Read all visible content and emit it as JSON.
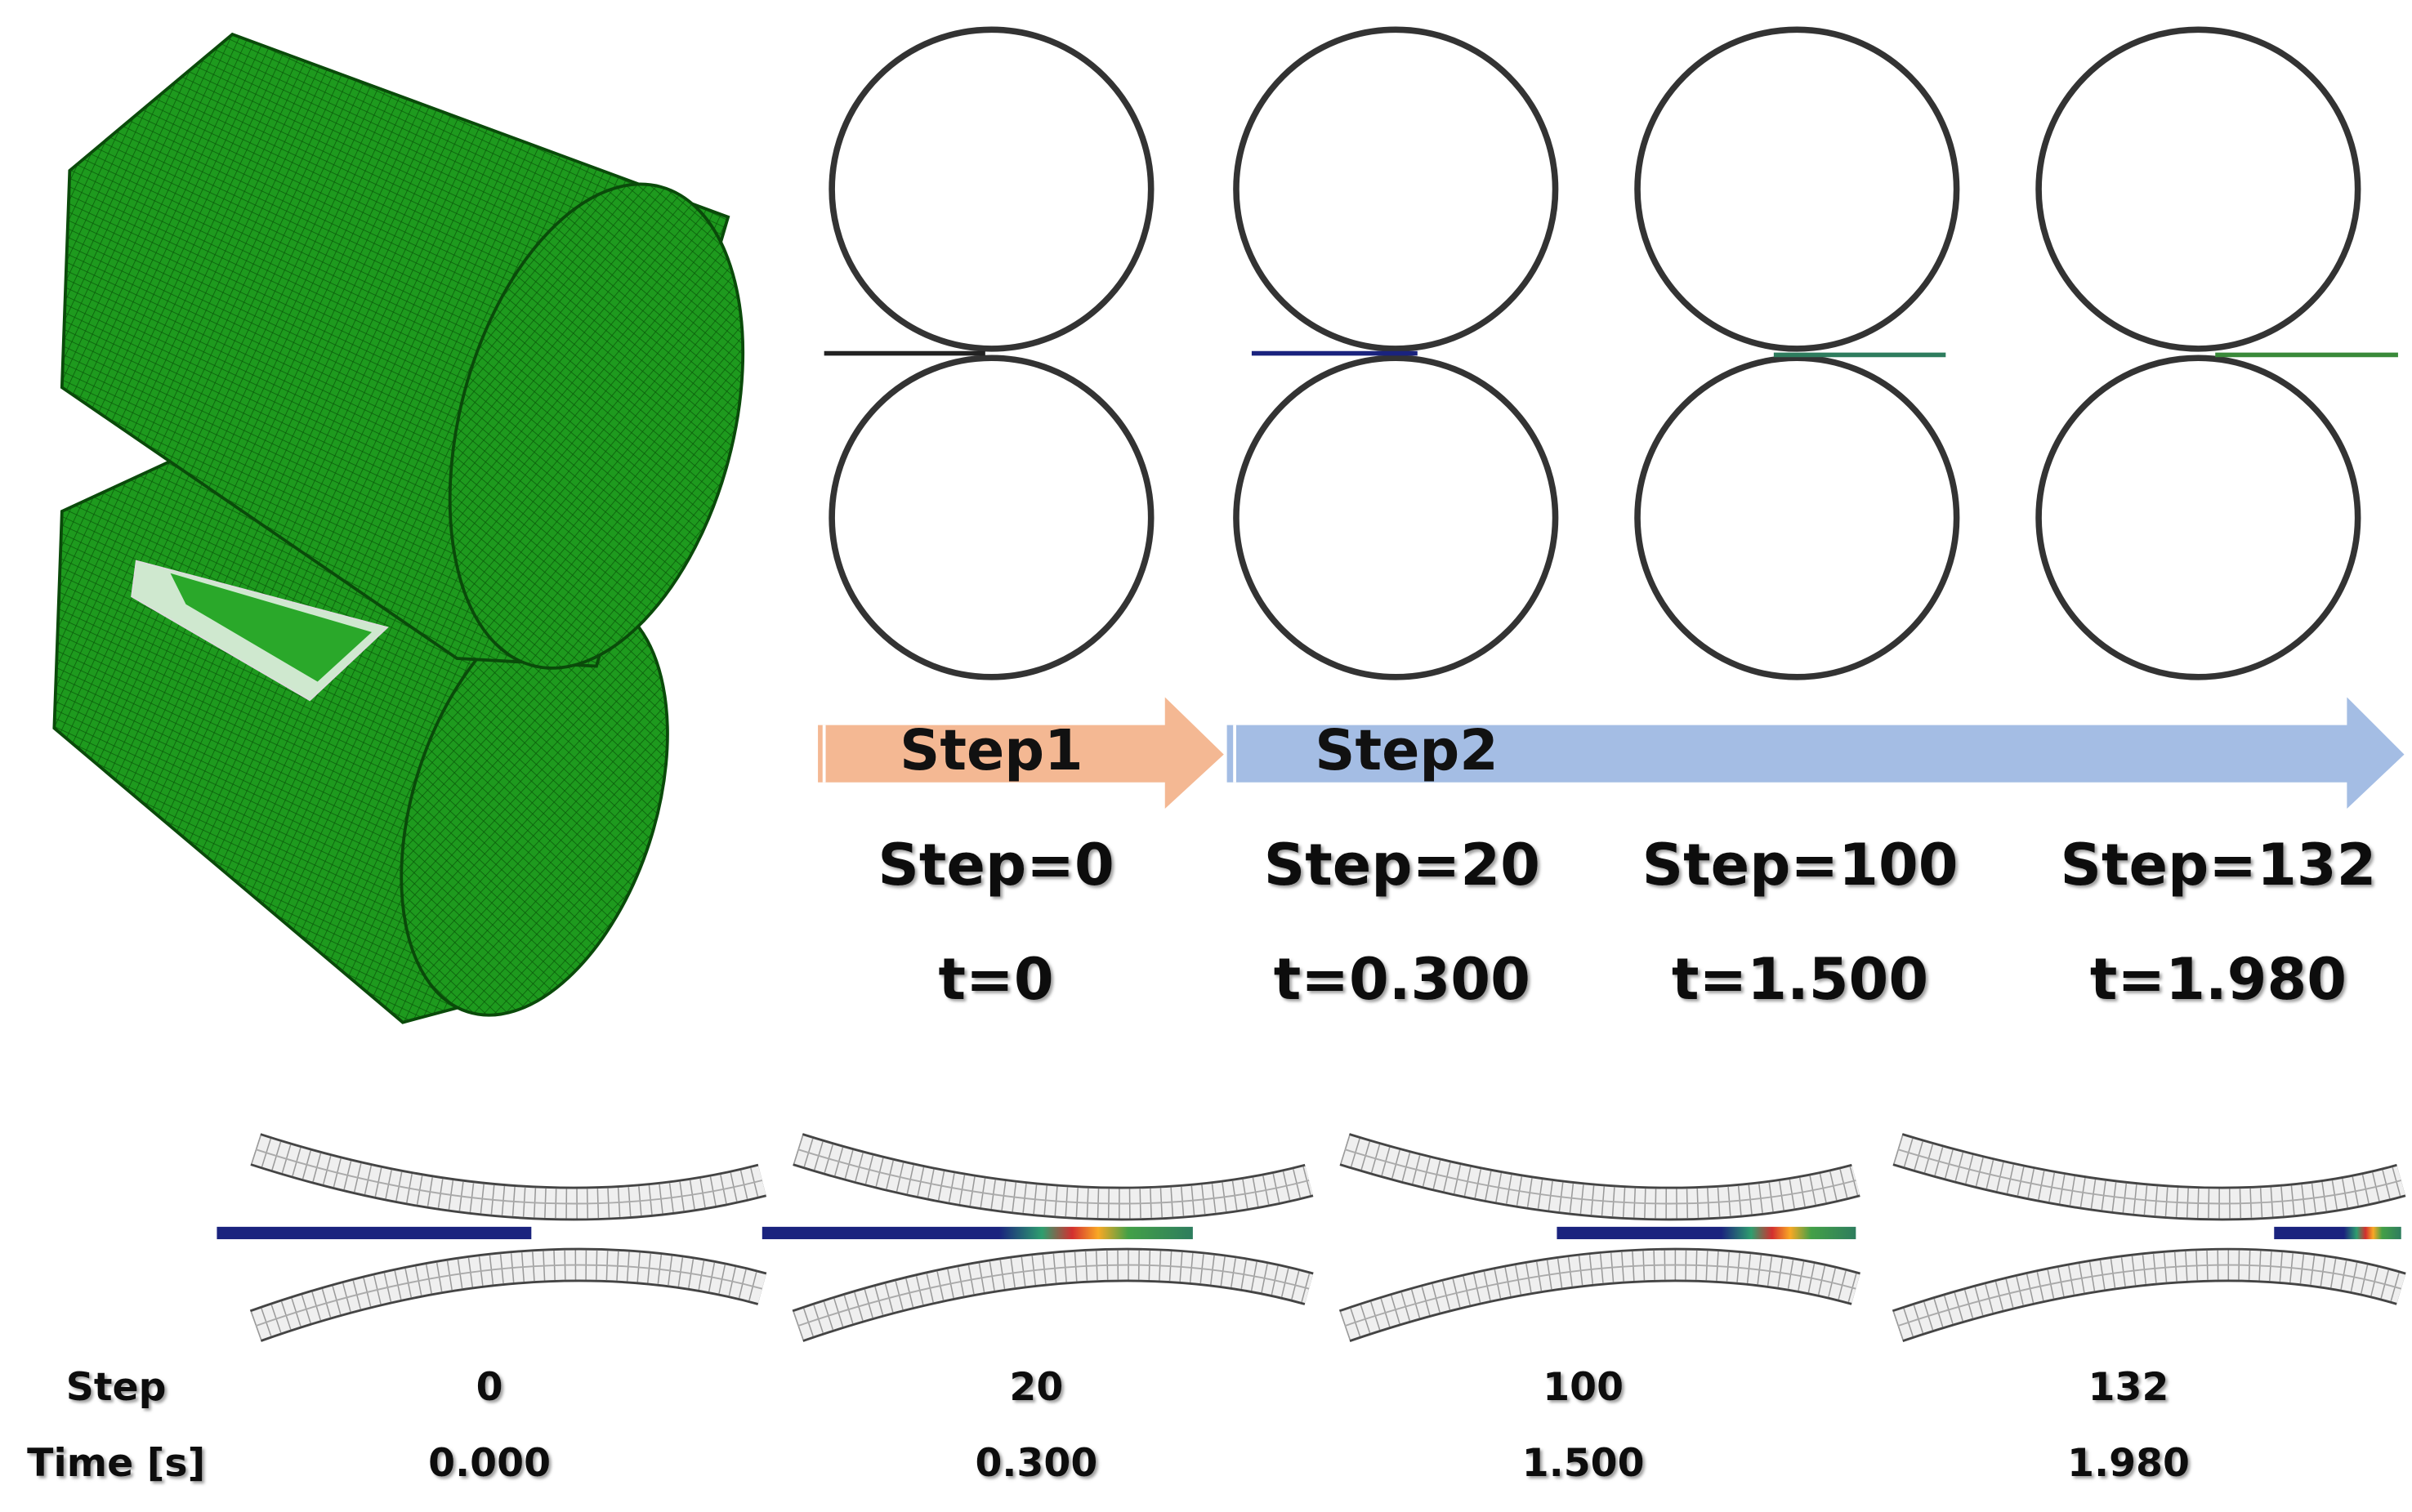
{
  "phases": [
    "Step1",
    "Step2"
  ],
  "snapshots": [
    {
      "step": "Step=0",
      "time": "t=0"
    },
    {
      "step": "Step=20",
      "time": "t=0.300"
    },
    {
      "step": "Step=100",
      "time": "t=1.500"
    },
    {
      "step": "Step=132",
      "time": "t=1.980"
    }
  ],
  "table": {
    "row_headers": [
      "Step",
      "Time [s]"
    ],
    "steps": [
      "0",
      "20",
      "100",
      "132"
    ],
    "times": [
      "0.000",
      "0.300",
      "1.500",
      "1.980"
    ]
  }
}
